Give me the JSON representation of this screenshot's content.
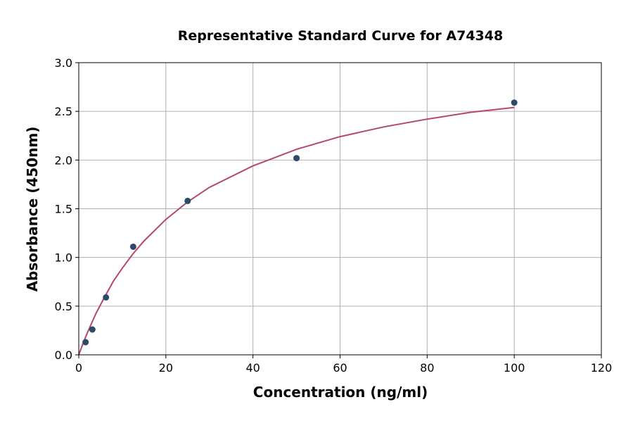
{
  "chart_data": {
    "type": "scatter",
    "title": "Representative Standard Curve for A74348",
    "xlabel": "Concentration (ng/ml)",
    "ylabel": "Absorbance (450nm)",
    "xlim": [
      0,
      120
    ],
    "ylim": [
      0,
      3.0
    ],
    "xticks": [
      "0",
      "20",
      "40",
      "60",
      "80",
      "100",
      "120"
    ],
    "yticks": [
      "0.0",
      "0.5",
      "1.0",
      "1.5",
      "2.0",
      "2.5",
      "3.0"
    ],
    "grid": true,
    "points": {
      "x": [
        1.5625,
        3.125,
        6.25,
        12.5,
        25,
        50,
        100
      ],
      "y": [
        0.13,
        0.26,
        0.59,
        1.11,
        1.58,
        2.02,
        2.59
      ],
      "color": "#2e4a6b"
    },
    "fit_curve": {
      "x": [
        0,
        1,
        2,
        4,
        6,
        8,
        10,
        12.5,
        15,
        20,
        25,
        30,
        40,
        50,
        60,
        70,
        80,
        90,
        100
      ],
      "y": [
        0,
        0.12,
        0.23,
        0.43,
        0.6,
        0.76,
        0.89,
        1.04,
        1.17,
        1.39,
        1.57,
        1.72,
        1.94,
        2.11,
        2.24,
        2.34,
        2.42,
        2.49,
        2.54
      ],
      "color": "#b5476b"
    }
  }
}
